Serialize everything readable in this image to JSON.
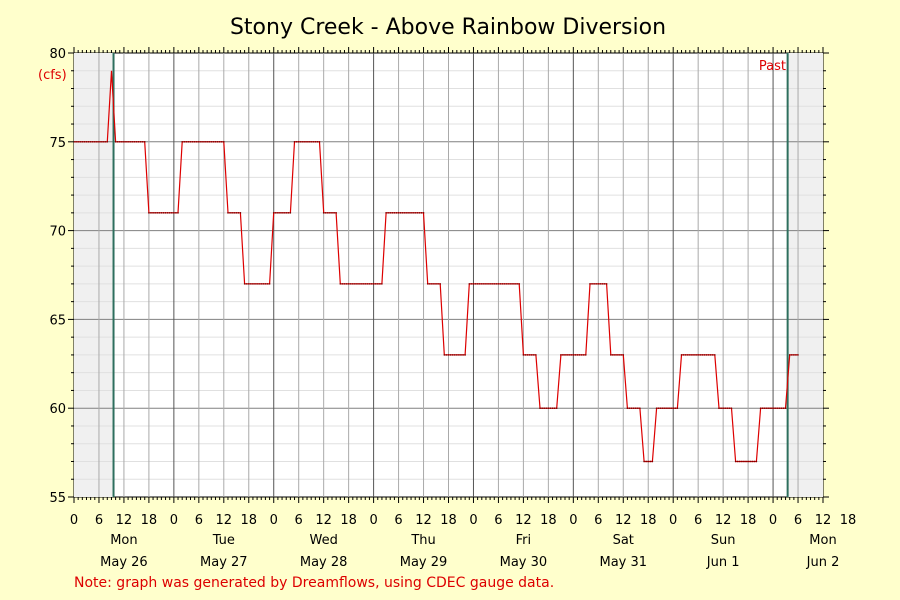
{
  "chart_data": {
    "type": "line",
    "title": "Stony Creek - Above Rainbow Diversion",
    "unit_label": "(cfs)",
    "past_label": "Past",
    "note": "Note: graph was generated by Dreamflows, using CDEC gauge data.",
    "grid": true,
    "colors": {
      "background": "#FFFFCC",
      "plot": "#FFFFFF",
      "shade": "#F0F0F0",
      "line": "#DD0000",
      "marker": "#2E6F5E"
    },
    "y_ticks": [
      "55",
      "60",
      "65",
      "70",
      "75",
      "80"
    ],
    "ylim": [
      55,
      80
    ],
    "x_unit": "hours since Mon May 26 00:00",
    "xlim": [
      0,
      180
    ],
    "hour_ticks": [
      "0",
      "6",
      "12",
      "18",
      "0",
      "6",
      "12",
      "18",
      "0",
      "6",
      "12",
      "18",
      "0",
      "6",
      "12",
      "18",
      "0",
      "6",
      "12",
      "18",
      "0",
      "6",
      "12",
      "18",
      "0",
      "6",
      "12",
      "18",
      "0",
      "6",
      "12",
      "18"
    ],
    "days": [
      {
        "weekday": "Mon",
        "date": "May 26"
      },
      {
        "weekday": "Tue",
        "date": "May 27"
      },
      {
        "weekday": "Wed",
        "date": "May 28"
      },
      {
        "weekday": "Thu",
        "date": "May 29"
      },
      {
        "weekday": "Fri",
        "date": "May 30"
      },
      {
        "weekday": "Sat",
        "date": "May 31"
      },
      {
        "weekday": "Sun",
        "date": "Jun 1"
      },
      {
        "weekday": "Mon",
        "date": "Jun 2"
      }
    ],
    "shaded_ranges": [
      [
        0,
        9.5
      ],
      [
        171.5,
        180
      ]
    ],
    "markers": [
      9.5,
      171.5
    ],
    "series": [
      {
        "name": "",
        "points": [
          [
            0,
            75
          ],
          [
            8,
            75
          ],
          [
            9,
            79
          ],
          [
            10,
            75
          ],
          [
            17,
            75
          ],
          [
            18,
            71
          ],
          [
            25,
            71
          ],
          [
            26,
            75
          ],
          [
            36,
            75
          ],
          [
            37,
            71
          ],
          [
            40,
            71
          ],
          [
            41,
            67
          ],
          [
            47,
            67
          ],
          [
            48,
            71
          ],
          [
            52,
            71
          ],
          [
            53,
            75
          ],
          [
            59,
            75
          ],
          [
            60,
            71
          ],
          [
            63,
            71
          ],
          [
            64,
            67
          ],
          [
            74,
            67
          ],
          [
            75,
            71
          ],
          [
            84,
            71
          ],
          [
            85,
            67
          ],
          [
            88,
            67
          ],
          [
            89,
            63
          ],
          [
            94,
            63
          ],
          [
            95,
            67
          ],
          [
            107,
            67
          ],
          [
            108,
            63
          ],
          [
            111,
            63
          ],
          [
            112,
            60
          ],
          [
            116,
            60
          ],
          [
            117,
            63
          ],
          [
            123,
            63
          ],
          [
            124,
            67
          ],
          [
            128,
            67
          ],
          [
            129,
            63
          ],
          [
            132,
            63
          ],
          [
            133,
            60
          ],
          [
            136,
            60
          ],
          [
            137,
            57
          ],
          [
            139,
            57
          ],
          [
            140,
            60
          ],
          [
            145,
            60
          ],
          [
            146,
            63
          ],
          [
            154,
            63
          ],
          [
            155,
            60
          ],
          [
            158,
            60
          ],
          [
            159,
            57
          ],
          [
            164,
            57
          ],
          [
            165,
            60
          ],
          [
            171,
            60
          ],
          [
            172,
            63
          ],
          [
            174,
            63
          ]
        ]
      }
    ]
  }
}
